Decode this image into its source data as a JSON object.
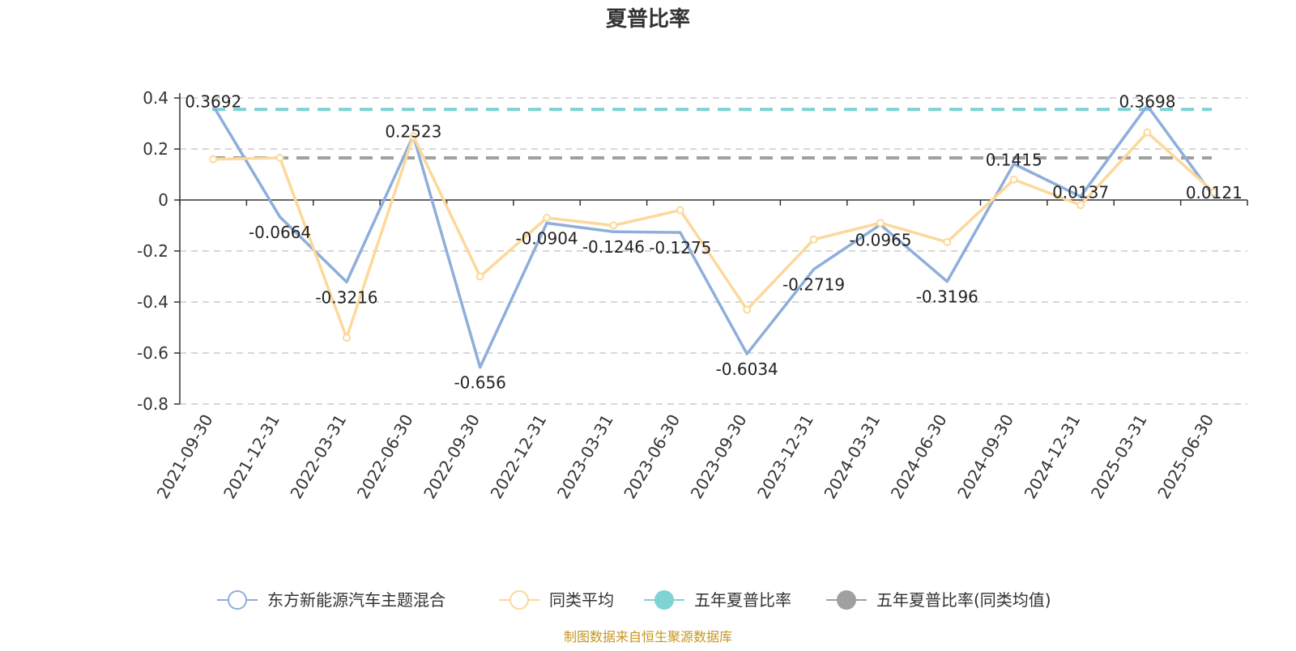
{
  "chart_data": {
    "type": "line",
    "title": "夏普比率",
    "categories": [
      "2021-09-30",
      "2021-12-31",
      "2022-03-31",
      "2022-06-30",
      "2022-09-30",
      "2022-12-31",
      "2023-03-31",
      "2023-06-30",
      "2023-09-30",
      "2023-12-31",
      "2024-03-31",
      "2024-06-30",
      "2024-09-30",
      "2024-12-31",
      "2025-03-31",
      "2025-06-30"
    ],
    "ylim": [
      -0.8,
      0.4
    ],
    "yticks": [
      0.4,
      0.2,
      0,
      -0.2,
      -0.4,
      -0.6,
      -0.8
    ],
    "ytick_labels": [
      "0.4",
      "0.2",
      "0",
      "-0.2",
      "-0.4",
      "-0.6",
      "-0.8"
    ],
    "grid": true,
    "legend_position": "bottom",
    "series": [
      {
        "name": "东方新能源汽车主题混合",
        "color": "#8eaedb",
        "values": [
          0.3692,
          -0.0664,
          -0.3216,
          0.2523,
          -0.656,
          -0.0904,
          -0.1246,
          -0.1275,
          -0.6034,
          -0.2719,
          -0.0965,
          -0.3196,
          0.1415,
          0.0137,
          0.3698,
          0.0121
        ],
        "labels": [
          "0.3692",
          "-0.0664",
          "-0.3216",
          "0.2523",
          "-0.656",
          "-0.0904",
          "-0.1246",
          "-0.1275",
          "-0.6034",
          "-0.2719",
          "-0.0965",
          "-0.3196",
          "0.1415",
          "0.0137",
          "0.3698",
          "0.0121"
        ]
      },
      {
        "name": "同类平均",
        "color": "#fcd89a",
        "values": [
          0.16,
          0.165,
          -0.54,
          0.25,
          -0.3,
          -0.07,
          -0.1,
          -0.04,
          -0.43,
          -0.155,
          -0.09,
          -0.165,
          0.08,
          -0.02,
          0.265,
          0.03
        ]
      },
      {
        "name": "五年夏普比率",
        "color": "#7fd3d3",
        "value": 0.355
      },
      {
        "name": "五年夏普比率(同类均值)",
        "color": "#a0a0a0",
        "value": 0.165
      }
    ],
    "source": "制图数据来自恒生聚源数据库"
  }
}
